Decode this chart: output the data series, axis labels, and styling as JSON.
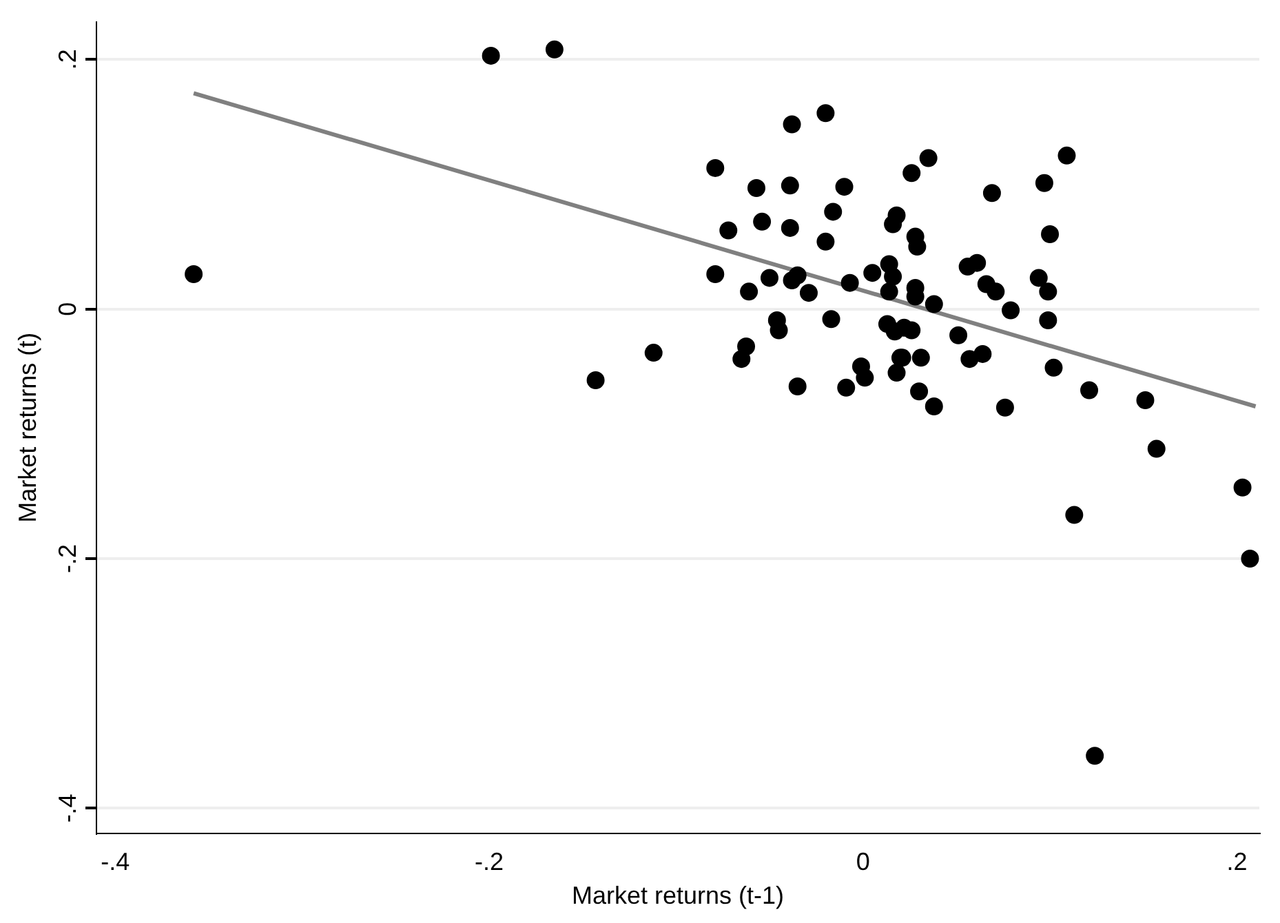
{
  "chart_data": {
    "type": "scatter",
    "xlabel": "Market returns (t-1)",
    "ylabel": "Market returns (t)",
    "xlim": [
      -0.41,
      0.212
    ],
    "ylim": [
      -0.42,
      0.23
    ],
    "xticks": [
      {
        "value": -0.4,
        "label": "-.4"
      },
      {
        "value": -0.2,
        "label": "-.2"
      },
      0,
      {
        "value": 0.2,
        "label": ".2"
      }
    ],
    "yticks": [
      {
        "value": -0.4,
        "label": "-.4"
      },
      {
        "value": -0.2,
        "label": "-.2"
      },
      0,
      {
        "value": 0.2,
        "label": ".2"
      }
    ],
    "grid": "y",
    "legend": false,
    "marker": "circle",
    "series": [
      {
        "type": "scatter",
        "color": "#000000",
        "x": [
          -0.358,
          -0.199,
          -0.165,
          -0.143,
          -0.112,
          -0.079,
          -0.079,
          -0.072,
          -0.0625,
          -0.065,
          -0.061,
          -0.057,
          -0.054,
          -0.05,
          -0.039,
          -0.01,
          -0.016,
          -0.039,
          -0.02,
          -0.038,
          -0.035,
          -0.029,
          -0.007,
          0.005,
          0.014,
          0.016,
          0.014,
          -0.046,
          -0.045,
          -0.017,
          -0.035,
          -0.009,
          -0.001,
          0.001,
          0.013,
          0.017,
          0.02,
          0.018,
          -0.038,
          0.018,
          0.016,
          -0.02,
          0.035,
          0.026,
          0.109,
          0.069,
          0.097,
          0.028,
          0.029,
          0.1,
          0.056,
          0.061,
          0.066,
          0.071,
          0.094,
          0.099,
          0.028,
          0.028,
          0.038,
          0.079,
          0.099,
          0.051,
          0.022,
          0.026,
          0.021,
          0.031,
          0.057,
          0.064,
          0.102,
          0.03,
          0.038,
          0.076,
          0.121,
          0.151,
          0.157,
          0.113,
          0.203,
          0.207,
          0.124
        ],
        "values": [
          0.028,
          0.203,
          0.208,
          -0.057,
          -0.035,
          0.113,
          0.028,
          0.063,
          -0.03,
          -0.04,
          0.014,
          0.097,
          0.07,
          0.025,
          0.099,
          0.098,
          0.078,
          0.065,
          0.054,
          0.023,
          0.027,
          0.013,
          0.021,
          0.029,
          0.036,
          0.026,
          0.014,
          -0.009,
          -0.017,
          -0.008,
          -0.062,
          -0.063,
          -0.046,
          -0.055,
          -0.012,
          -0.018,
          -0.039,
          -0.051,
          0.148,
          0.075,
          0.068,
          0.157,
          0.121,
          0.109,
          0.123,
          0.093,
          0.101,
          0.058,
          0.05,
          0.06,
          0.034,
          0.037,
          0.02,
          0.014,
          0.025,
          0.014,
          0.017,
          0.01,
          0.004,
          -0.001,
          -0.009,
          -0.021,
          -0.015,
          -0.017,
          -0.039,
          -0.039,
          -0.04,
          -0.036,
          -0.047,
          -0.066,
          -0.078,
          -0.079,
          -0.065,
          -0.073,
          -0.112,
          -0.165,
          -0.143,
          -0.2,
          -0.358
        ]
      },
      {
        "type": "line",
        "color": "#808080",
        "marker": "none",
        "x": [
          -0.358,
          0.21
        ],
        "values": [
          0.173,
          -0.078
        ]
      }
    ]
  }
}
